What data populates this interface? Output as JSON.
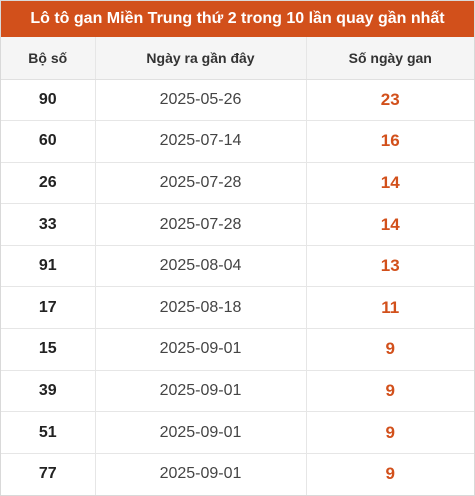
{
  "title": "Lô tô gan Miền Trung thứ 2 trong 10 lần quay gần nhất",
  "colors": {
    "header_bg": "#d2501b",
    "accent": "#d2501b"
  },
  "columns": [
    "Bộ số",
    "Ngày ra gần đây",
    "Số ngày gan"
  ],
  "rows": [
    {
      "number": "90",
      "date": "2025-05-26",
      "days": "23"
    },
    {
      "number": "60",
      "date": "2025-07-14",
      "days": "16"
    },
    {
      "number": "26",
      "date": "2025-07-28",
      "days": "14"
    },
    {
      "number": "33",
      "date": "2025-07-28",
      "days": "14"
    },
    {
      "number": "91",
      "date": "2025-08-04",
      "days": "13"
    },
    {
      "number": "17",
      "date": "2025-08-18",
      "days": "11"
    },
    {
      "number": "15",
      "date": "2025-09-01",
      "days": "9"
    },
    {
      "number": "39",
      "date": "2025-09-01",
      "days": "9"
    },
    {
      "number": "51",
      "date": "2025-09-01",
      "days": "9"
    },
    {
      "number": "77",
      "date": "2025-09-01",
      "days": "9"
    }
  ]
}
